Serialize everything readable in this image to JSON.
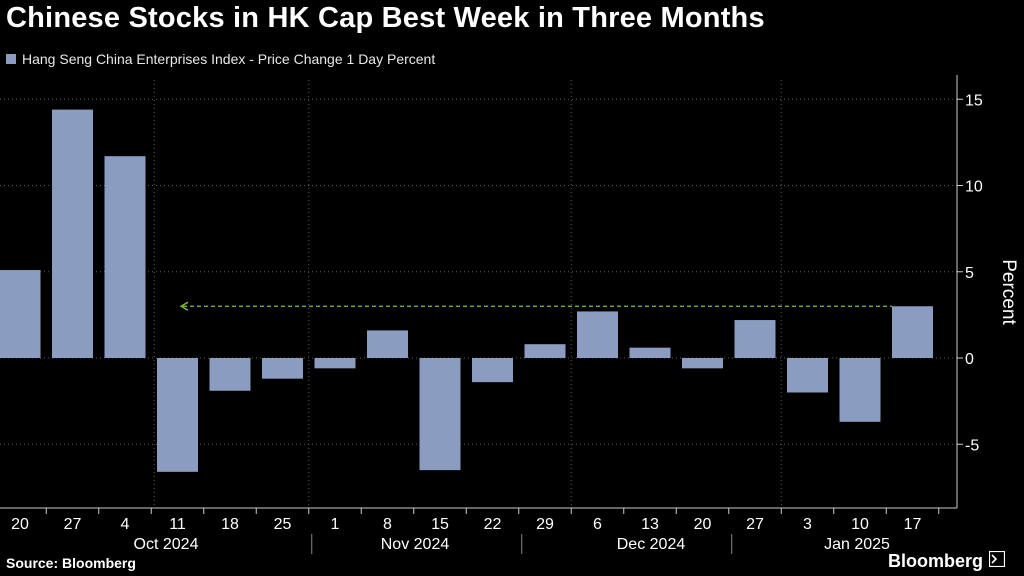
{
  "title": "Chinese Stocks in HK Cap Best Week in Three Months",
  "source": "Source: Bloomberg",
  "brand": "Bloomberg",
  "colors": {
    "bar": "#8a9cbf",
    "grid": "#5a5a5a",
    "dashed_line": "#7fc241",
    "text": "#ffffff"
  },
  "chart_data": {
    "type": "bar",
    "series": [
      {
        "name": "Hang Seng China Enterprises Index - Price Change 1 Day Percent",
        "values": [
          5.1,
          14.4,
          11.7,
          -6.6,
          -1.9,
          -1.2,
          -0.6,
          1.6,
          -6.5,
          -1.4,
          0.8,
          2.7,
          0.6,
          -0.6,
          2.2,
          -2.0,
          -3.7,
          3.0
        ]
      }
    ],
    "categories": [
      "20",
      "27",
      "4",
      "11",
      "18",
      "25",
      "1",
      "8",
      "15",
      "22",
      "29",
      "6",
      "13",
      "20",
      "27",
      "3",
      "10",
      "17"
    ],
    "month_labels": [
      "Oct 2024",
      "Nov 2024",
      "Dec 2024",
      "Jan 2025"
    ],
    "ylabel": "Percent",
    "yticks": [
      15,
      10,
      5,
      0,
      -5
    ],
    "ylim": [
      -7.5,
      16
    ],
    "reference_line": {
      "value": 3.0,
      "style": "dashed",
      "direction": "arrow-left"
    },
    "grid": true
  }
}
